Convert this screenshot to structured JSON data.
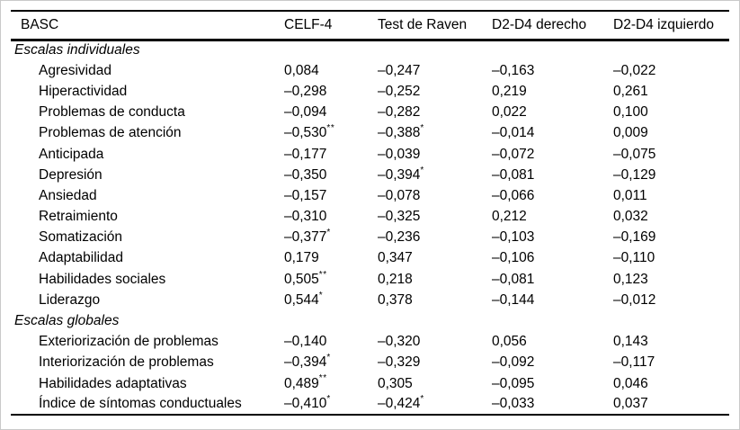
{
  "colors": {
    "background": "#ffffff",
    "text": "#000000",
    "rules": "#000000",
    "frame": "#c9c9c9"
  },
  "table": {
    "columns": [
      "BASC",
      "CELF-4",
      "Test de Raven",
      "D2-D4 derecho",
      "D2-D4 izquierdo"
    ],
    "sections": [
      {
        "label": "Escalas individuales",
        "rows": [
          {
            "label": "Agresividad",
            "values": [
              {
                "v": "0,084"
              },
              {
                "v": "–0,247"
              },
              {
                "v": "–0,163"
              },
              {
                "v": "–0,022"
              }
            ]
          },
          {
            "label": "Hiperactividad",
            "values": [
              {
                "v": "–0,298"
              },
              {
                "v": "–0,252"
              },
              {
                "v": "0,219"
              },
              {
                "v": "0,261"
              }
            ]
          },
          {
            "label": "Problemas de conducta",
            "values": [
              {
                "v": "–0,094"
              },
              {
                "v": "–0,282"
              },
              {
                "v": "0,022"
              },
              {
                "v": "0,100"
              }
            ]
          },
          {
            "label": "Problemas de atención",
            "values": [
              {
                "v": "–0,530",
                "s": "**"
              },
              {
                "v": "–0,388",
                "s": "*"
              },
              {
                "v": "–0,014"
              },
              {
                "v": "0,009"
              }
            ]
          },
          {
            "label": "Anticipada",
            "values": [
              {
                "v": "–0,177"
              },
              {
                "v": "–0,039"
              },
              {
                "v": "–0,072"
              },
              {
                "v": "–0,075"
              }
            ]
          },
          {
            "label": "Depresión",
            "values": [
              {
                "v": "–0,350"
              },
              {
                "v": "–0,394",
                "s": "*"
              },
              {
                "v": "–0,081"
              },
              {
                "v": "–0,129"
              }
            ]
          },
          {
            "label": "Ansiedad",
            "values": [
              {
                "v": "–0,157"
              },
              {
                "v": "–0,078"
              },
              {
                "v": "–0,066"
              },
              {
                "v": "0,011"
              }
            ]
          },
          {
            "label": "Retraimiento",
            "values": [
              {
                "v": "–0,310"
              },
              {
                "v": "–0,325"
              },
              {
                "v": "0,212"
              },
              {
                "v": "0,032"
              }
            ]
          },
          {
            "label": "Somatización",
            "values": [
              {
                "v": "–0,377",
                "s": "*"
              },
              {
                "v": "–0,236"
              },
              {
                "v": "–0,103"
              },
              {
                "v": "–0,169"
              }
            ]
          },
          {
            "label": "Adaptabilidad",
            "values": [
              {
                "v": "0,179"
              },
              {
                "v": "0,347"
              },
              {
                "v": "–0,106"
              },
              {
                "v": "–0,110"
              }
            ]
          },
          {
            "label": "Habilidades sociales",
            "values": [
              {
                "v": "0,505",
                "s": "**"
              },
              {
                "v": "0,218"
              },
              {
                "v": "–0,081"
              },
              {
                "v": "0,123"
              }
            ]
          },
          {
            "label": "Liderazgo",
            "values": [
              {
                "v": "0,544",
                "s": "*"
              },
              {
                "v": "0,378"
              },
              {
                "v": "–0,144"
              },
              {
                "v": "–0,012"
              }
            ]
          }
        ]
      },
      {
        "label": "Escalas globales",
        "rows": [
          {
            "label": "Exteriorización de problemas",
            "values": [
              {
                "v": "–0,140"
              },
              {
                "v": "–0,320"
              },
              {
                "v": "0,056"
              },
              {
                "v": "0,143"
              }
            ]
          },
          {
            "label": "Interiorización de problemas",
            "values": [
              {
                "v": "–0,394",
                "s": "*"
              },
              {
                "v": "–0,329"
              },
              {
                "v": "–0,092"
              },
              {
                "v": "–0,117"
              }
            ]
          },
          {
            "label": "Habilidades adaptativas",
            "values": [
              {
                "v": "0,489",
                "s": "**"
              },
              {
                "v": "0,305"
              },
              {
                "v": "–0,095"
              },
              {
                "v": "0,046"
              }
            ]
          },
          {
            "label": "Índice de síntomas conductuales",
            "values": [
              {
                "v": "–0,410",
                "s": "*"
              },
              {
                "v": "–0,424",
                "s": "*"
              },
              {
                "v": "–0,033"
              },
              {
                "v": "0,037"
              }
            ]
          }
        ]
      }
    ]
  }
}
